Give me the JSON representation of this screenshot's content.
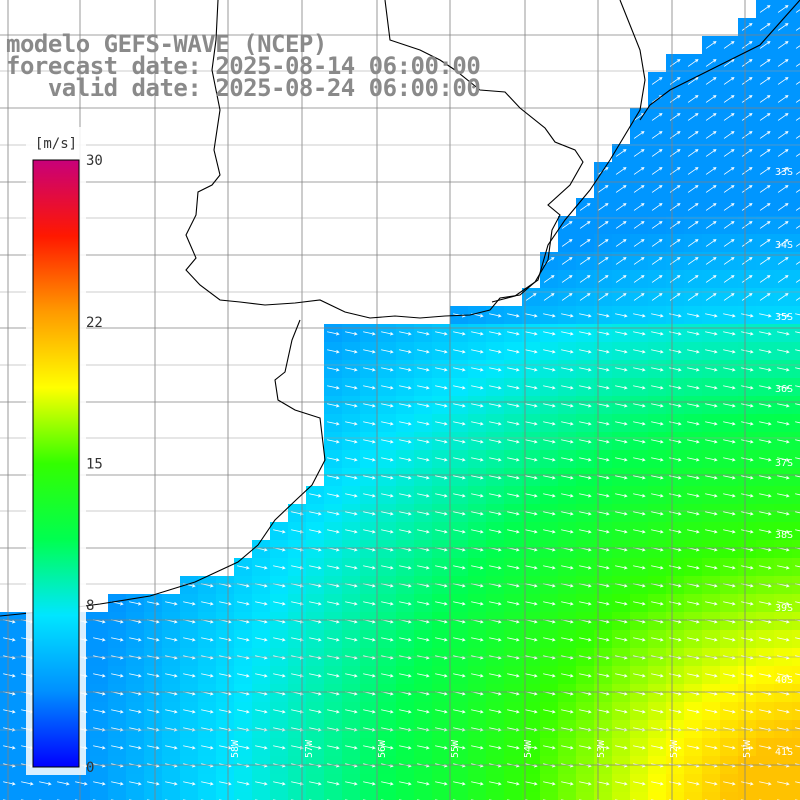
{
  "header": {
    "line1": "modelo GEFS-WAVE (NCEP)",
    "line2": "forecast date: 2025-08-14 06:00:00",
    "line3": "   valid date: 2025-08-24 06:00:00"
  },
  "colorbar": {
    "unit": "[m/s]",
    "ticks": [
      {
        "value": 30,
        "label": "30"
      },
      {
        "value": 22,
        "label": "22"
      },
      {
        "value": 15,
        "label": "15"
      },
      {
        "value": 8,
        "label": "8"
      },
      {
        "value": 0,
        "label": "0"
      }
    ],
    "min": 0,
    "max": 30,
    "colors": [
      "#0000ff",
      "#0090ff",
      "#00e6ff",
      "#00ff50",
      "#33ff00",
      "#ffff00",
      "#ff9a00",
      "#ff1800",
      "#c8007a"
    ]
  },
  "lat_labels": [
    "33S",
    "34S",
    "35S",
    "36S",
    "37S",
    "38S",
    "39S",
    "40S",
    "41S"
  ],
  "lon_labels": [
    "58W",
    "57W",
    "56W",
    "55W",
    "54W",
    "53W",
    "52W",
    "51W"
  ],
  "field": {
    "variable": "wind speed",
    "units": "m/s",
    "arrow_direction": "toward east-southeast",
    "land_color": "#ffffff",
    "coast_color": "#000000",
    "grid_color": "#808080"
  }
}
